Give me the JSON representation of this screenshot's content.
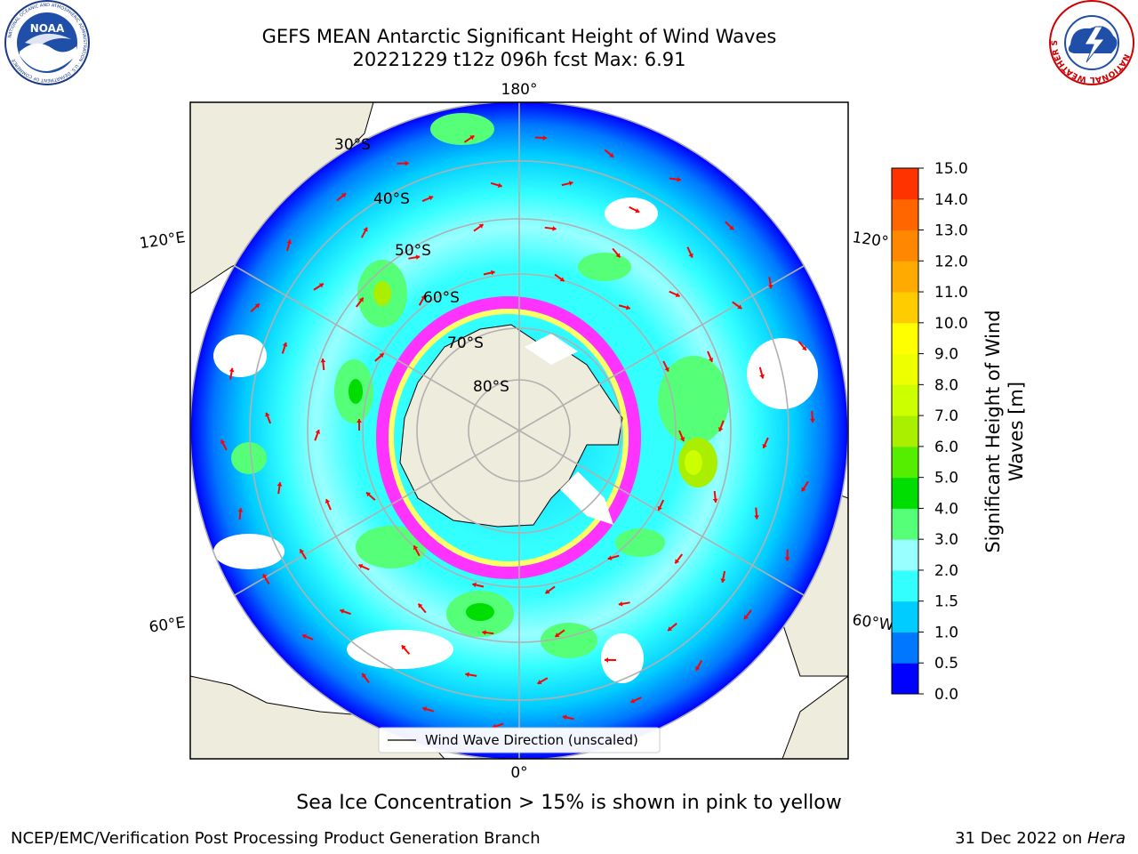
{
  "header": {
    "title_line1": "GEFS MEAN Antarctic Significant Height of Wind Waves",
    "title_line2": "20221229 t12z 096h fcst   Max: 6.91"
  },
  "logos": {
    "left": "NOAA",
    "left_ring": "NATIONAL OCEANIC AND ATMOSPHERIC ADMINISTRATION · U.S. DEPARTMENT OF COMMERCE",
    "right_ring": "NATIONAL WEATHER SERVICE"
  },
  "map": {
    "longitude_labels": [
      "180°",
      "120°E",
      "120°",
      "60°E",
      "60°W",
      "0°"
    ],
    "latitude_labels": [
      "30°S",
      "40°S",
      "50°S",
      "60°S",
      "70°S",
      "80°S"
    ],
    "legend_label": "Wind Wave Direction (unscaled)",
    "colors": {
      "land": "#eeecdc",
      "sea_ice_pink": "#ff33ff",
      "sea_ice_yellow": "#ffff66",
      "arrow": "#ff0000",
      "grid": "#b0b0b0"
    }
  },
  "colorbar": {
    "label_line1": "Significant Height of Wind",
    "label_line2": "Waves [m]",
    "ticks": [
      "0.0",
      "0.5",
      "1.0",
      "1.5",
      "2.0",
      "3.0",
      "4.0",
      "5.0",
      "6.0",
      "7.0",
      "8.0",
      "9.0",
      "10.0",
      "11.0",
      "12.0",
      "13.0",
      "14.0",
      "15.0"
    ],
    "colors": [
      "#0000ff",
      "#0077ff",
      "#00ccff",
      "#33ffff",
      "#99ffff",
      "#55ff77",
      "#00dd00",
      "#55ee00",
      "#aaee00",
      "#ccff00",
      "#eeff00",
      "#ffff00",
      "#ffcc00",
      "#ffaa00",
      "#ff8800",
      "#ff6600",
      "#ff3300"
    ]
  },
  "footnote": "Sea Ice Concentration > 15% is shown in pink to yellow",
  "footer": {
    "left": "NCEP/EMC/Verification Post Processing Product Generation Branch",
    "right_date": "31 Dec 2022 on ",
    "right_host": "Hera"
  }
}
